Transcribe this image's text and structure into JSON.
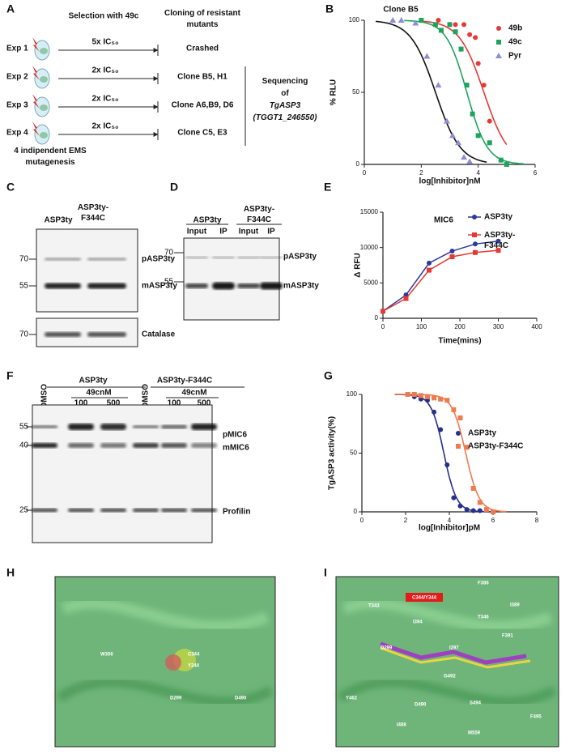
{
  "panel_labels": [
    "A",
    "B",
    "C",
    "D",
    "E",
    "F",
    "G",
    "H",
    "I"
  ],
  "scheme": {
    "experiments": [
      "Exp 1",
      "Exp 2",
      "Exp 3",
      "Exp 4"
    ],
    "selection": "Selection with 49c",
    "doses": [
      "5x IC₅₀",
      "2x IC₅₀",
      "2x IC₅₀",
      "2x IC₅₀"
    ],
    "cloning": [
      "Cloning of resistant",
      "mutants"
    ],
    "results": [
      "Crashed",
      "Clone B5, H1",
      "Clone A6,B9, D6",
      "Clone  C5, E3"
    ],
    "sequencing": [
      "Sequencing",
      "of",
      "TgASP3",
      "(TGGT1_246550)"
    ],
    "mutagenesis": [
      "4 indipendent EMS",
      "mutagenesis"
    ]
  },
  "blot_c": {
    "lanes": [
      "ASP3ty",
      [
        "ASP3ty-",
        "F344C"
      ]
    ],
    "markers": [
      "70",
      "55",
      "70"
    ],
    "bands": [
      "pASP3ty",
      "mASP3ty",
      "Catalase"
    ]
  },
  "blot_d": {
    "groups": [
      "ASP3ty",
      [
        "ASP3ty-",
        "F344C"
      ]
    ],
    "lanes": [
      "Input",
      "IP",
      "Input",
      "IP"
    ],
    "markers": [
      "70",
      "55"
    ],
    "bands": [
      "pASP3ty",
      "mASP3ty"
    ]
  },
  "blot_f": {
    "groups": [
      "ASP3ty",
      "ASP3ty-F344C"
    ],
    "lanes": [
      "DMSO",
      "49cnM",
      "100",
      "500",
      "DMSO",
      "49cnM",
      "100",
      "500"
    ],
    "markers": [
      "55",
      "40",
      "25"
    ],
    "bands": [
      "pMIC6",
      "mMIC6",
      "Profilin"
    ]
  },
  "structure_h": {
    "residues": [
      "C344",
      "Y344",
      "W306",
      "D299",
      "D490"
    ]
  },
  "structure_i": {
    "highlight": "C344/Y344",
    "residues": [
      "F386",
      "T343",
      "I389",
      "I394",
      "T346",
      "F391",
      "D299",
      "I297",
      "Y462",
      "G492",
      "S494",
      "D490",
      "I488",
      "F495",
      "M559"
    ]
  },
  "chart_data": [
    {
      "type": "scatter",
      "title": "Clone B5",
      "x_label": "log[Inhibitor]nM",
      "y_label": "% RLU",
      "xlim": [
        0,
        6
      ],
      "xticks": [
        0,
        2,
        4,
        6
      ],
      "ylim": [
        0,
        100
      ],
      "yticks": [
        0,
        50,
        100
      ],
      "legend": "upper right",
      "series": [
        {
          "name": "49b",
          "color": "#e53935",
          "marker": "circle",
          "x": [
            2.6,
            3.2,
            3.5,
            3.7,
            3.9,
            4.0,
            4.2,
            4.4
          ],
          "values": [
            100,
            97,
            97,
            90,
            88,
            70,
            55,
            30
          ],
          "fit": {
            "log_ic50": 4.2,
            "hill": 1.0
          }
        },
        {
          "name": "49c",
          "color": "#1fa35c",
          "marker": "square",
          "x": [
            2.0,
            2.5,
            2.7,
            3.0,
            3.2,
            3.4,
            3.6,
            3.8,
            4.0,
            4.4,
            4.8,
            5.0
          ],
          "values": [
            100,
            97,
            93,
            97,
            92,
            80,
            55,
            35,
            20,
            15,
            3,
            0
          ],
          "fit": {
            "log_ic50": 3.6,
            "hill": 1.2
          }
        },
        {
          "name": "Pyr",
          "color": "#8e8ed6",
          "marker": "triangle",
          "x": [
            1.0,
            1.3,
            1.8,
            2.2,
            2.6,
            2.9,
            3.1,
            3.3,
            3.5,
            3.7
          ],
          "values": [
            100,
            100,
            98,
            75,
            55,
            30,
            20,
            15,
            5,
            2
          ],
          "fit": {
            "log_ic50": 2.5,
            "hill": 1.0
          }
        }
      ]
    },
    {
      "type": "line",
      "title": "MIC6",
      "x_label": "Time(mins)",
      "y_label": "Δ RFU",
      "xlim": [
        0,
        400
      ],
      "xticks": [
        0,
        100,
        200,
        300,
        400
      ],
      "ylim": [
        0,
        15000
      ],
      "yticks": [
        0,
        5000,
        10000,
        15000
      ],
      "legend": "upper right",
      "series": [
        {
          "name": "ASP3ty",
          "color": "#2b3a9b",
          "marker": "circle",
          "x": [
            0,
            60,
            120,
            180,
            240,
            300
          ],
          "values": [
            1000,
            3300,
            7800,
            9500,
            10500,
            10900
          ]
        },
        {
          "name": [
            "ASP3ty-",
            "F344C"
          ],
          "color": "#e53935",
          "marker": "square",
          "x": [
            0,
            60,
            120,
            180,
            240,
            300
          ],
          "values": [
            1000,
            2800,
            6800,
            8700,
            9300,
            9600
          ]
        }
      ]
    },
    {
      "type": "scatter",
      "x_label": "log[Inhibitor]pM",
      "y_label": "TgASP3 activity(%)",
      "xlim": [
        0,
        8
      ],
      "xticks": [
        0,
        2,
        4,
        6,
        8
      ],
      "ylim": [
        0,
        100
      ],
      "yticks": [
        0,
        50,
        100
      ],
      "legend": "upper right",
      "series": [
        {
          "name": "ASP3ty",
          "color": "#27308a",
          "marker": "circle",
          "x": [
            2.1,
            2.4,
            2.7,
            3.0,
            3.3,
            3.6,
            3.9,
            4.2,
            4.5,
            4.8,
            5.1,
            5.4
          ],
          "values": [
            100,
            98,
            96,
            95,
            85,
            70,
            40,
            12,
            5,
            2,
            1,
            1
          ],
          "fit": {
            "log_ic50": 3.75,
            "hill": 1.5
          }
        },
        {
          "name": "ASP3ty-F344C",
          "color": "#f07a4e",
          "marker": "square",
          "x": [
            2.1,
            2.4,
            2.7,
            3.0,
            3.3,
            3.6,
            3.9,
            4.2,
            4.5,
            4.8,
            5.1,
            5.4,
            5.7,
            6.0
          ],
          "values": [
            100,
            100,
            99,
            98,
            97,
            96,
            95,
            87,
            80,
            55,
            20,
            8,
            2,
            0
          ],
          "fit": {
            "log_ic50": 4.75,
            "hill": 1.4
          }
        }
      ]
    }
  ]
}
